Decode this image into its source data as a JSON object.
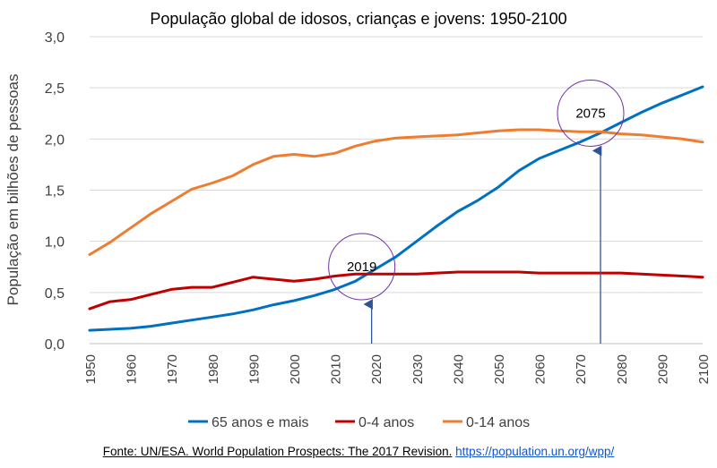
{
  "chart_data": {
    "type": "line",
    "title": "População global de idosos, crianças e jovens: 1950-2100",
    "xlabel": "",
    "ylabel": "População em bilhões de pessoas",
    "x": [
      1950,
      1955,
      1960,
      1965,
      1970,
      1975,
      1980,
      1985,
      1990,
      1995,
      2000,
      2005,
      2010,
      2015,
      2020,
      2025,
      2030,
      2035,
      2040,
      2045,
      2050,
      2055,
      2060,
      2065,
      2070,
      2075,
      2080,
      2085,
      2090,
      2095,
      2100
    ],
    "xticks": [
      1950,
      1960,
      1970,
      1980,
      1990,
      2000,
      2010,
      2020,
      2030,
      2040,
      2050,
      2060,
      2070,
      2080,
      2090,
      2100
    ],
    "xtick_labels": [
      "1950",
      "1960",
      "1970",
      "1980",
      "1990",
      "2000",
      "2010",
      "2020",
      "2030",
      "2040",
      "2050",
      "2060",
      "2070",
      "2080",
      "2090",
      "2100"
    ],
    "ylim": [
      0,
      3
    ],
    "yticks": [
      0,
      0.5,
      1,
      1.5,
      2,
      2.5,
      3
    ],
    "ytick_labels": [
      "0,0",
      "0,5",
      "1,0",
      "1,5",
      "2,0",
      "2,5",
      "3,0"
    ],
    "grid": "horizontal",
    "legend_position": "bottom",
    "series": [
      {
        "name": "65 anos e mais",
        "color": "#0070c0",
        "values": [
          0.13,
          0.14,
          0.15,
          0.17,
          0.2,
          0.23,
          0.26,
          0.29,
          0.33,
          0.38,
          0.42,
          0.47,
          0.53,
          0.61,
          0.73,
          0.85,
          1.0,
          1.15,
          1.29,
          1.4,
          1.53,
          1.69,
          1.81,
          1.89,
          1.97,
          2.06,
          2.16,
          2.26,
          2.35,
          2.43,
          2.51
        ]
      },
      {
        "name": "0-4 anos",
        "color": "#c00000",
        "values": [
          0.34,
          0.41,
          0.43,
          0.48,
          0.53,
          0.55,
          0.55,
          0.6,
          0.65,
          0.63,
          0.61,
          0.63,
          0.66,
          0.68,
          0.68,
          0.68,
          0.68,
          0.69,
          0.7,
          0.7,
          0.7,
          0.7,
          0.69,
          0.69,
          0.69,
          0.69,
          0.69,
          0.68,
          0.67,
          0.66,
          0.65
        ]
      },
      {
        "name": "0-14 anos",
        "color": "#ed7d31",
        "values": [
          0.87,
          0.99,
          1.13,
          1.27,
          1.39,
          1.51,
          1.57,
          1.64,
          1.75,
          1.83,
          1.85,
          1.83,
          1.86,
          1.93,
          1.98,
          2.01,
          2.02,
          2.03,
          2.04,
          2.06,
          2.08,
          2.09,
          2.09,
          2.08,
          2.07,
          2.07,
          2.05,
          2.04,
          2.02,
          2.0,
          1.97
        ]
      }
    ],
    "annotations": [
      {
        "text": "2019",
        "x": 2019,
        "y": 0.7,
        "arrow_from_y": 0.0,
        "circle_color": "#7030a0"
      },
      {
        "text": "2075",
        "x": 2075,
        "y": 2.2,
        "arrow_from_y": 0.0,
        "circle_color": "#7030a0"
      }
    ],
    "source": {
      "text": "Fonte: UN/ESA. World Population Prospects: The 2017 Revision.",
      "url": "https://population.un.org/wpp/"
    }
  }
}
